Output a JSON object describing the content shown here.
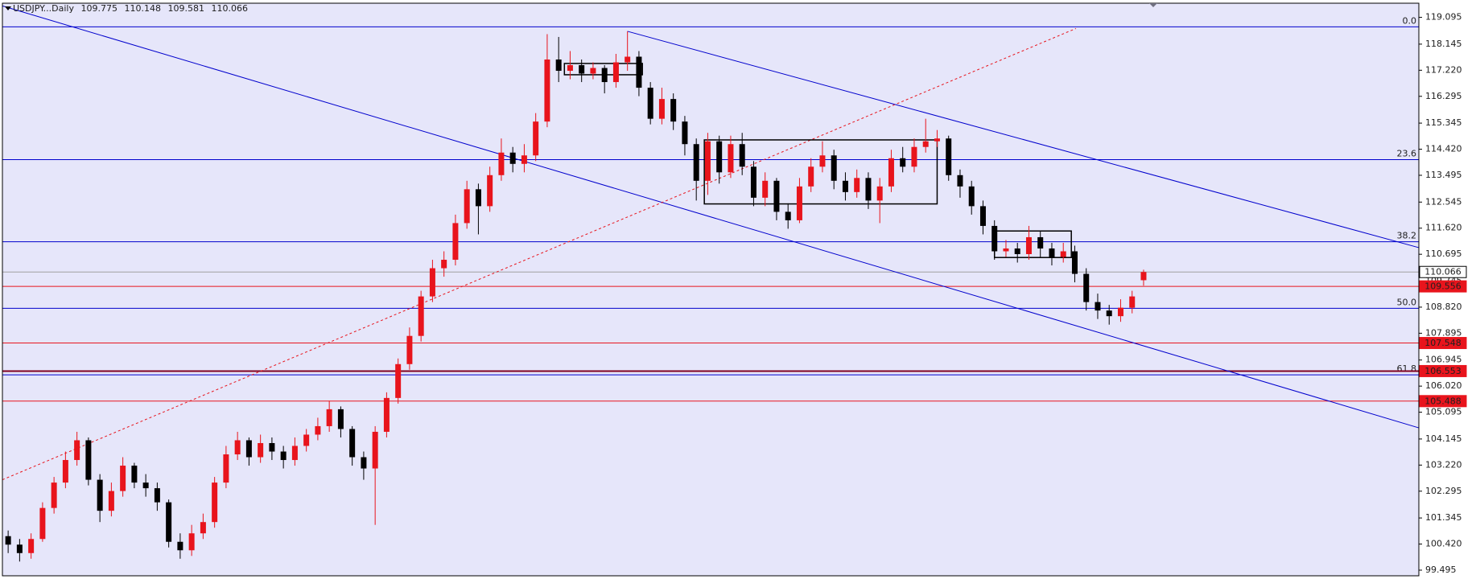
{
  "chart_data": {
    "type": "candlestick",
    "symbol": "USDJPY...Daily",
    "open": [
      100.7,
      100.4,
      100.1,
      100.6,
      101.7,
      102.6,
      103.4,
      104.1,
      102.7,
      101.6,
      102.3,
      103.2,
      102.6,
      102.4,
      101.9,
      100.5,
      100.2,
      100.8,
      101.2,
      102.6,
      103.6,
      104.1,
      103.5,
      104.0,
      103.7,
      103.4,
      103.9,
      104.3,
      104.6,
      105.2,
      104.5,
      103.5,
      103.1,
      104.4,
      105.6,
      106.8,
      107.8,
      109.2,
      110.2,
      110.5,
      111.8,
      113.0,
      112.4,
      113.5,
      114.3,
      113.9,
      114.2,
      115.4,
      117.6,
      117.2,
      117.4,
      117.1,
      117.3,
      116.8,
      117.5,
      117.7,
      116.6,
      115.5,
      116.2,
      115.4,
      114.6,
      113.3,
      114.7,
      113.6,
      114.6,
      113.8,
      112.7,
      113.3,
      112.2,
      111.9,
      113.1,
      113.8,
      114.2,
      113.3,
      112.9,
      113.4,
      112.6,
      113.1,
      114.1,
      113.8,
      114.5,
      114.7,
      114.8,
      113.5,
      113.1,
      112.4,
      111.7,
      110.8,
      110.9,
      110.7,
      111.3,
      110.9,
      110.6,
      110.8,
      110.0,
      109.0,
      108.7,
      108.5,
      108.8,
      109.775
    ],
    "high": [
      100.9,
      100.6,
      100.8,
      101.9,
      102.8,
      103.7,
      104.4,
      104.2,
      102.9,
      102.6,
      103.5,
      103.3,
      102.9,
      102.6,
      102.0,
      100.8,
      101.1,
      101.5,
      102.8,
      103.9,
      104.4,
      104.2,
      104.3,
      104.2,
      103.9,
      104.2,
      104.5,
      104.9,
      105.5,
      105.3,
      104.6,
      103.7,
      104.6,
      105.8,
      107.0,
      108.1,
      109.4,
      110.5,
      110.8,
      112.1,
      113.3,
      113.2,
      113.8,
      114.8,
      114.5,
      114.6,
      115.7,
      118.5,
      118.4,
      117.9,
      117.6,
      117.5,
      117.4,
      117.8,
      118.6,
      117.9,
      116.8,
      116.6,
      116.4,
      115.6,
      114.8,
      115.0,
      114.9,
      114.9,
      115.0,
      114.0,
      113.6,
      113.4,
      112.5,
      113.4,
      114.1,
      114.7,
      114.4,
      113.6,
      113.7,
      113.6,
      113.4,
      114.4,
      114.5,
      114.8,
      115.5,
      115.1,
      114.9,
      113.7,
      113.3,
      112.6,
      111.9,
      111.2,
      111.1,
      111.7,
      111.5,
      111.1,
      111.1,
      111.0,
      110.2,
      109.3,
      108.9,
      109.1,
      109.4,
      110.148
    ],
    "low": [
      100.1,
      99.8,
      99.9,
      100.5,
      101.5,
      102.4,
      103.2,
      102.5,
      101.2,
      101.4,
      102.1,
      102.4,
      102.1,
      101.6,
      100.3,
      99.9,
      100.0,
      100.6,
      101.0,
      102.4,
      103.4,
      103.2,
      103.3,
      103.4,
      103.1,
      103.2,
      103.7,
      104.1,
      104.4,
      104.2,
      103.2,
      102.7,
      101.1,
      104.2,
      105.4,
      106.6,
      107.6,
      109.0,
      109.9,
      110.3,
      111.6,
      111.4,
      112.2,
      113.3,
      113.6,
      113.6,
      114.0,
      115.2,
      116.8,
      116.9,
      116.8,
      116.9,
      116.4,
      116.6,
      117.2,
      116.3,
      115.3,
      115.3,
      115.1,
      114.2,
      112.6,
      112.8,
      113.2,
      113.4,
      113.5,
      112.4,
      112.4,
      111.9,
      111.6,
      111.8,
      112.9,
      113.6,
      113.0,
      112.6,
      112.7,
      112.3,
      111.8,
      112.9,
      113.6,
      113.6,
      114.3,
      114.5,
      113.3,
      112.7,
      112.1,
      111.4,
      110.5,
      110.6,
      110.4,
      110.5,
      110.6,
      110.3,
      110.4,
      109.7,
      108.7,
      108.4,
      108.2,
      108.3,
      108.6,
      109.581
    ],
    "close": [
      100.4,
      100.1,
      100.6,
      101.7,
      102.6,
      103.4,
      104.1,
      102.7,
      101.6,
      102.3,
      103.2,
      102.6,
      102.4,
      101.9,
      100.5,
      100.2,
      100.8,
      101.2,
      102.6,
      103.6,
      104.1,
      103.5,
      104.0,
      103.7,
      103.4,
      103.9,
      104.3,
      104.6,
      105.2,
      104.5,
      103.5,
      103.1,
      104.4,
      105.6,
      106.8,
      107.8,
      109.2,
      110.2,
      110.5,
      111.8,
      113.0,
      112.4,
      113.5,
      114.3,
      113.9,
      114.2,
      115.4,
      117.6,
      117.2,
      117.4,
      117.1,
      117.3,
      116.8,
      117.5,
      117.7,
      116.6,
      115.5,
      116.2,
      115.4,
      114.6,
      113.3,
      114.7,
      113.6,
      114.6,
      113.8,
      112.7,
      113.3,
      112.2,
      111.9,
      113.1,
      113.8,
      114.2,
      113.3,
      112.9,
      113.4,
      112.6,
      113.1,
      114.1,
      113.8,
      114.5,
      114.7,
      114.8,
      113.5,
      113.1,
      112.4,
      111.7,
      110.8,
      110.9,
      110.7,
      111.3,
      110.9,
      110.6,
      110.8,
      110.0,
      109.0,
      108.7,
      108.5,
      108.8,
      109.2,
      110.066
    ],
    "up_color": "#e8141c",
    "down_color": "#000000",
    "background": "#e6e6fa",
    "xlim": [
      -0.5,
      123
    ],
    "ylim": [
      99.295,
      119.596
    ],
    "yticks": [
      119.095,
      118.145,
      {
        "value": 117.22,
        "label": "117.220"
      },
      116.295,
      115.345,
      {
        "value": 114.42,
        "label": "114.420"
      },
      113.495,
      112.545,
      {
        "value": 111.62,
        "label": "111.620"
      },
      110.695,
      109.745,
      {
        "value": 108.82,
        "label": "108.820"
      },
      107.895,
      106.945,
      {
        "value": 106.02,
        "label": "106.020"
      },
      105.095,
      104.145,
      {
        "value": 103.22,
        "label": "103.220"
      },
      102.295,
      101.345,
      {
        "value": 100.42,
        "label": "100.420"
      },
      99.495
    ],
    "fibonacci": {
      "color": "#0000cd",
      "levels": [
        {
          "label": "0.0",
          "price": 118.76
        },
        {
          "label": "23.6",
          "price": 114.05
        },
        {
          "label": "38.2",
          "price": 111.14
        },
        {
          "label": "50.0",
          "price": 108.78
        },
        {
          "label": "61.8",
          "price": 106.42
        }
      ]
    },
    "price_lines": [
      {
        "price": 110.066,
        "color": "#a0a0a0",
        "badge": "#ffffff",
        "badge_text": "#000000",
        "width": 1
      },
      {
        "price": 109.556,
        "color": "#e8141c",
        "badge": "#e8141c",
        "badge_text": "#ffffff",
        "width": 1
      },
      {
        "price": 107.548,
        "color": "#e8141c",
        "badge": "#e8141c",
        "badge_text": "#ffffff",
        "width": 1
      },
      {
        "price": 106.553,
        "color": "#800020",
        "badge": "#e8141c",
        "badge_text": "#ffffff",
        "width": 2
      },
      {
        "price": 105.488,
        "color": "#e8141c",
        "badge": "#e8141c",
        "badge_text": "#ffffff",
        "width": 1
      }
    ],
    "trendlines": [
      {
        "x": [
          54,
          123
        ],
        "y": [
          118.6,
          110.93
        ],
        "color": "#0000cd",
        "dashed": false
      },
      {
        "x": [
          -0.5,
          123
        ],
        "y": [
          119.5,
          104.54
        ],
        "color": "#0000cd",
        "dashed": false
      },
      {
        "x": [
          -0.5,
          93.1
        ],
        "y": [
          102.7,
          118.7
        ],
        "color": "#e8141c",
        "dashed": true
      }
    ],
    "rectangles": [
      {
        "x": [
          48.5,
          55.3
        ],
        "y": [
          117.46,
          117.06
        ]
      },
      {
        "x": [
          60.7,
          81.0
        ],
        "y": [
          114.75,
          112.48
        ]
      },
      {
        "x": [
          86.0,
          92.7
        ],
        "y": [
          111.52,
          110.58
        ]
      }
    ]
  }
}
